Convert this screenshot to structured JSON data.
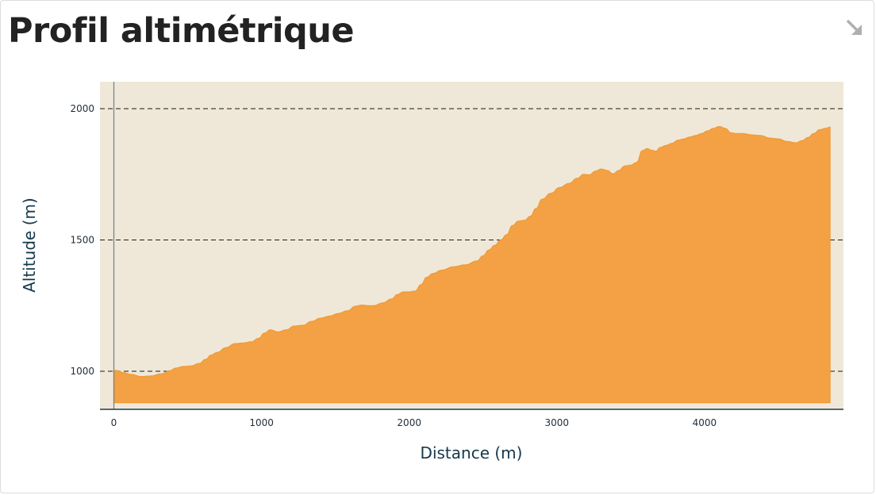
{
  "header": {
    "title": "Profil altimétrique",
    "collapse_icon": "collapse-arrow-icon"
  },
  "colors": {
    "plot_background": "#efe8d8",
    "area_fill": "#f3a144",
    "area_stroke": "#ef9a35",
    "grid": "#1a1a1a",
    "axis": "#1f3b4d"
  },
  "chart_data": {
    "type": "area",
    "xlabel": "Distance (m)",
    "ylabel": "Altitude (m)",
    "xlim": [
      0,
      4920
    ],
    "ylim": [
      880,
      2100
    ],
    "x_ticks": [
      0,
      1000,
      2000,
      3000,
      4000
    ],
    "y_ticks": [
      1000,
      1500,
      2000
    ],
    "grid": "horizontal dashed",
    "legend": "none",
    "baseline": 880,
    "series": [
      {
        "x": [
          0,
          30,
          60,
          120,
          180,
          250,
          320,
          380,
          420,
          470,
          520,
          580,
          620,
          660,
          700,
          760,
          820,
          880,
          930,
          980,
          1020,
          1060,
          1110,
          1170,
          1220,
          1280,
          1340,
          1400,
          1460,
          1520,
          1580,
          1640,
          1680,
          1720,
          1760,
          1820,
          1880,
          1920,
          1960,
          2000,
          2040,
          2080,
          2120,
          2160,
          2220,
          2300,
          2380,
          2460,
          2500,
          2540,
          2580,
          2620,
          2660,
          2700,
          2740,
          2780,
          2820,
          2860,
          2900,
          2960,
          3020,
          3080,
          3140,
          3180,
          3220,
          3260,
          3300,
          3340,
          3380,
          3420,
          3460,
          3500,
          3540,
          3580,
          3610,
          3640,
          3670,
          3700,
          3740,
          3780,
          3820,
          3860,
          3900,
          3940,
          3980,
          4020,
          4060,
          4100,
          4140,
          4180,
          4220,
          4260,
          4320,
          4380,
          4440,
          4500,
          4560,
          4620,
          4660,
          4700,
          4740,
          4780,
          4820,
          4850
        ],
        "values": [
          1003,
          1002,
          995,
          988,
          980,
          982,
          990,
          1002,
          1012,
          1018,
          1020,
          1030,
          1045,
          1062,
          1072,
          1090,
          1105,
          1108,
          1112,
          1125,
          1145,
          1158,
          1150,
          1158,
          1172,
          1175,
          1190,
          1202,
          1210,
          1220,
          1230,
          1248,
          1252,
          1250,
          1250,
          1260,
          1275,
          1292,
          1302,
          1302,
          1305,
          1330,
          1358,
          1372,
          1385,
          1398,
          1405,
          1420,
          1440,
          1462,
          1480,
          1500,
          1520,
          1555,
          1572,
          1575,
          1590,
          1620,
          1655,
          1678,
          1700,
          1715,
          1735,
          1750,
          1748,
          1762,
          1770,
          1765,
          1752,
          1765,
          1782,
          1785,
          1795,
          1840,
          1848,
          1842,
          1838,
          1852,
          1860,
          1868,
          1880,
          1885,
          1892,
          1898,
          1905,
          1915,
          1925,
          1932,
          1925,
          1908,
          1905,
          1905,
          1900,
          1898,
          1888,
          1885,
          1875,
          1870,
          1878,
          1890,
          1905,
          1920,
          1925,
          1930
        ]
      }
    ]
  }
}
